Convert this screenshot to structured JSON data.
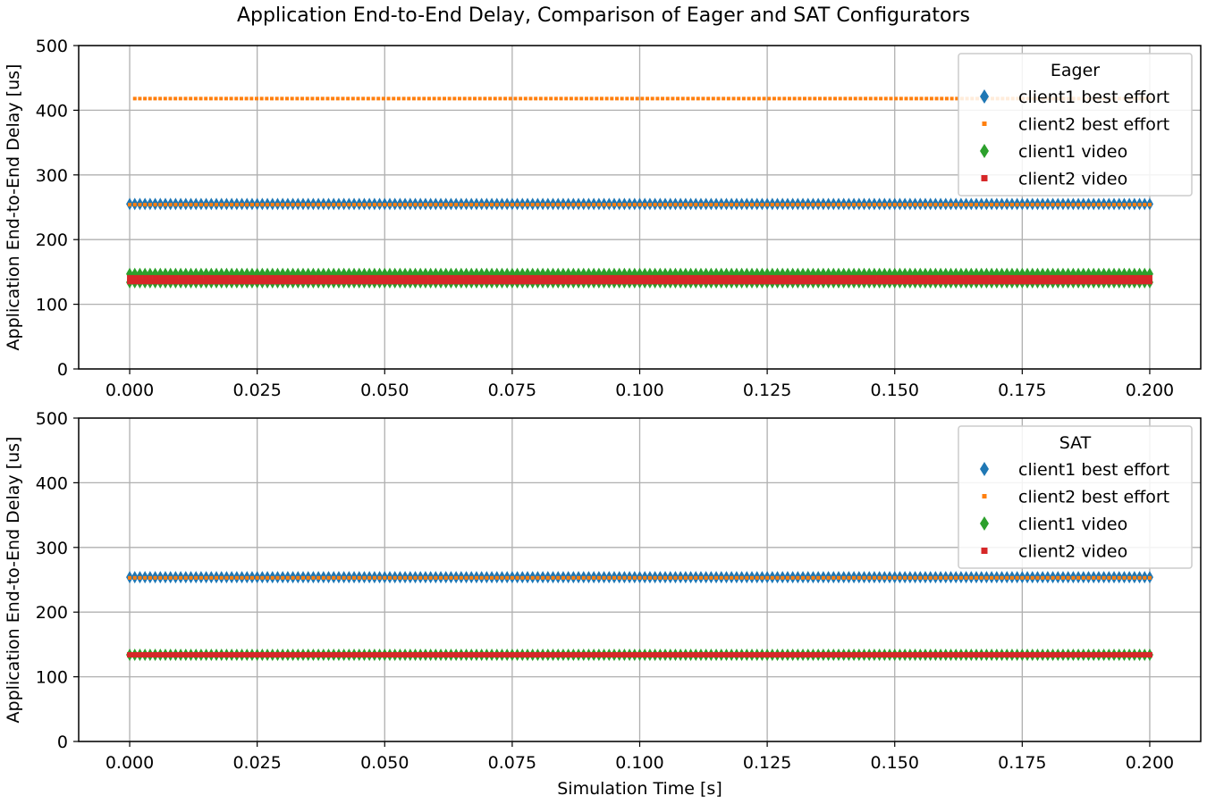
{
  "figure": {
    "title": "Application End-to-End Delay, Comparison of Eager and SAT Configurators",
    "shared_xlabel": "Simulation Time [s]"
  },
  "colors": {
    "client1_best_effort": "#1f77b4",
    "client2_best_effort": "#ff7f0e",
    "client1_video": "#2ca02c",
    "client2_video": "#d62728",
    "grid": "#b0b0b0",
    "legend_border": "#cccccc"
  },
  "chart_data": [
    {
      "type": "scatter",
      "legend_title": "Eager",
      "legend_position": "top-right",
      "xlabel": "",
      "ylabel": "Application End-to-End Delay [us]",
      "xlim": [
        -0.01,
        0.21
      ],
      "ylim": [
        0,
        500
      ],
      "x_ticks": [
        "0.000",
        "0.025",
        "0.050",
        "0.075",
        "0.100",
        "0.125",
        "0.150",
        "0.175",
        "0.200"
      ],
      "y_ticks": [
        "0",
        "100",
        "200",
        "300",
        "400",
        "500"
      ],
      "grid": true,
      "x_range": [
        0.0,
        0.2
      ],
      "series": [
        {
          "name": "client1 best effort",
          "marker": "diamond",
          "color_key": "client1_best_effort",
          "y_levels": [
            255
          ]
        },
        {
          "name": "client2 best effort",
          "marker": "square-small",
          "color_key": "client2_best_effort",
          "y_levels": [
            418,
            254
          ],
          "x_start": [
            0.001,
            0.0
          ]
        },
        {
          "name": "client1 video",
          "marker": "diamond",
          "color_key": "client1_video",
          "y_levels": [
            147,
            134
          ]
        },
        {
          "name": "client2 video",
          "marker": "square",
          "color_key": "client2_video",
          "y_levels": [
            141,
            135
          ]
        }
      ]
    },
    {
      "type": "scatter",
      "legend_title": "SAT",
      "legend_position": "top-right",
      "xlabel": "Simulation Time [s]",
      "ylabel": "Application End-to-End Delay [us]",
      "xlim": [
        -0.01,
        0.21
      ],
      "ylim": [
        0,
        500
      ],
      "x_ticks": [
        "0.000",
        "0.025",
        "0.050",
        "0.075",
        "0.100",
        "0.125",
        "0.150",
        "0.175",
        "0.200"
      ],
      "y_ticks": [
        "0",
        "100",
        "200",
        "300",
        "400",
        "500"
      ],
      "grid": true,
      "x_range": [
        0.0,
        0.2
      ],
      "series": [
        {
          "name": "client1 best effort",
          "marker": "diamond",
          "color_key": "client1_best_effort",
          "y_levels": [
            254
          ]
        },
        {
          "name": "client2 best effort",
          "marker": "square-small",
          "color_key": "client2_best_effort",
          "y_levels": [
            253
          ]
        },
        {
          "name": "client1 video",
          "marker": "diamond",
          "color_key": "client1_video",
          "y_levels": [
            134
          ]
        },
        {
          "name": "client2 video",
          "marker": "square",
          "color_key": "client2_video",
          "y_levels": [
            134
          ]
        }
      ]
    }
  ]
}
